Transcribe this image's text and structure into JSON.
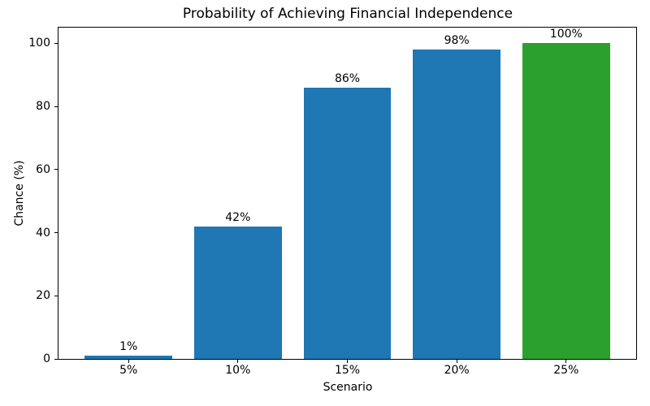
{
  "chart_data": {
    "type": "bar",
    "title": "Probability of Achieving Financial Independence",
    "xlabel": "Scenario",
    "ylabel": "Chance (%)",
    "categories": [
      "5%",
      "10%",
      "15%",
      "20%",
      "25%"
    ],
    "values": [
      1,
      42,
      86,
      98,
      100
    ],
    "bar_labels": [
      "1%",
      "42%",
      "86%",
      "98%",
      "100%"
    ],
    "bar_colors": [
      "#1f77b4",
      "#1f77b4",
      "#1f77b4",
      "#1f77b4",
      "#2ca02c"
    ],
    "ylim": [
      0,
      105
    ],
    "yticks": [
      0,
      20,
      40,
      60,
      80,
      100
    ],
    "grid": false,
    "legend": "none",
    "colors": {
      "default_bar": "#1f77b4",
      "highlight_bar": "#2ca02c",
      "text": "#000000",
      "background": "#ffffff"
    }
  }
}
